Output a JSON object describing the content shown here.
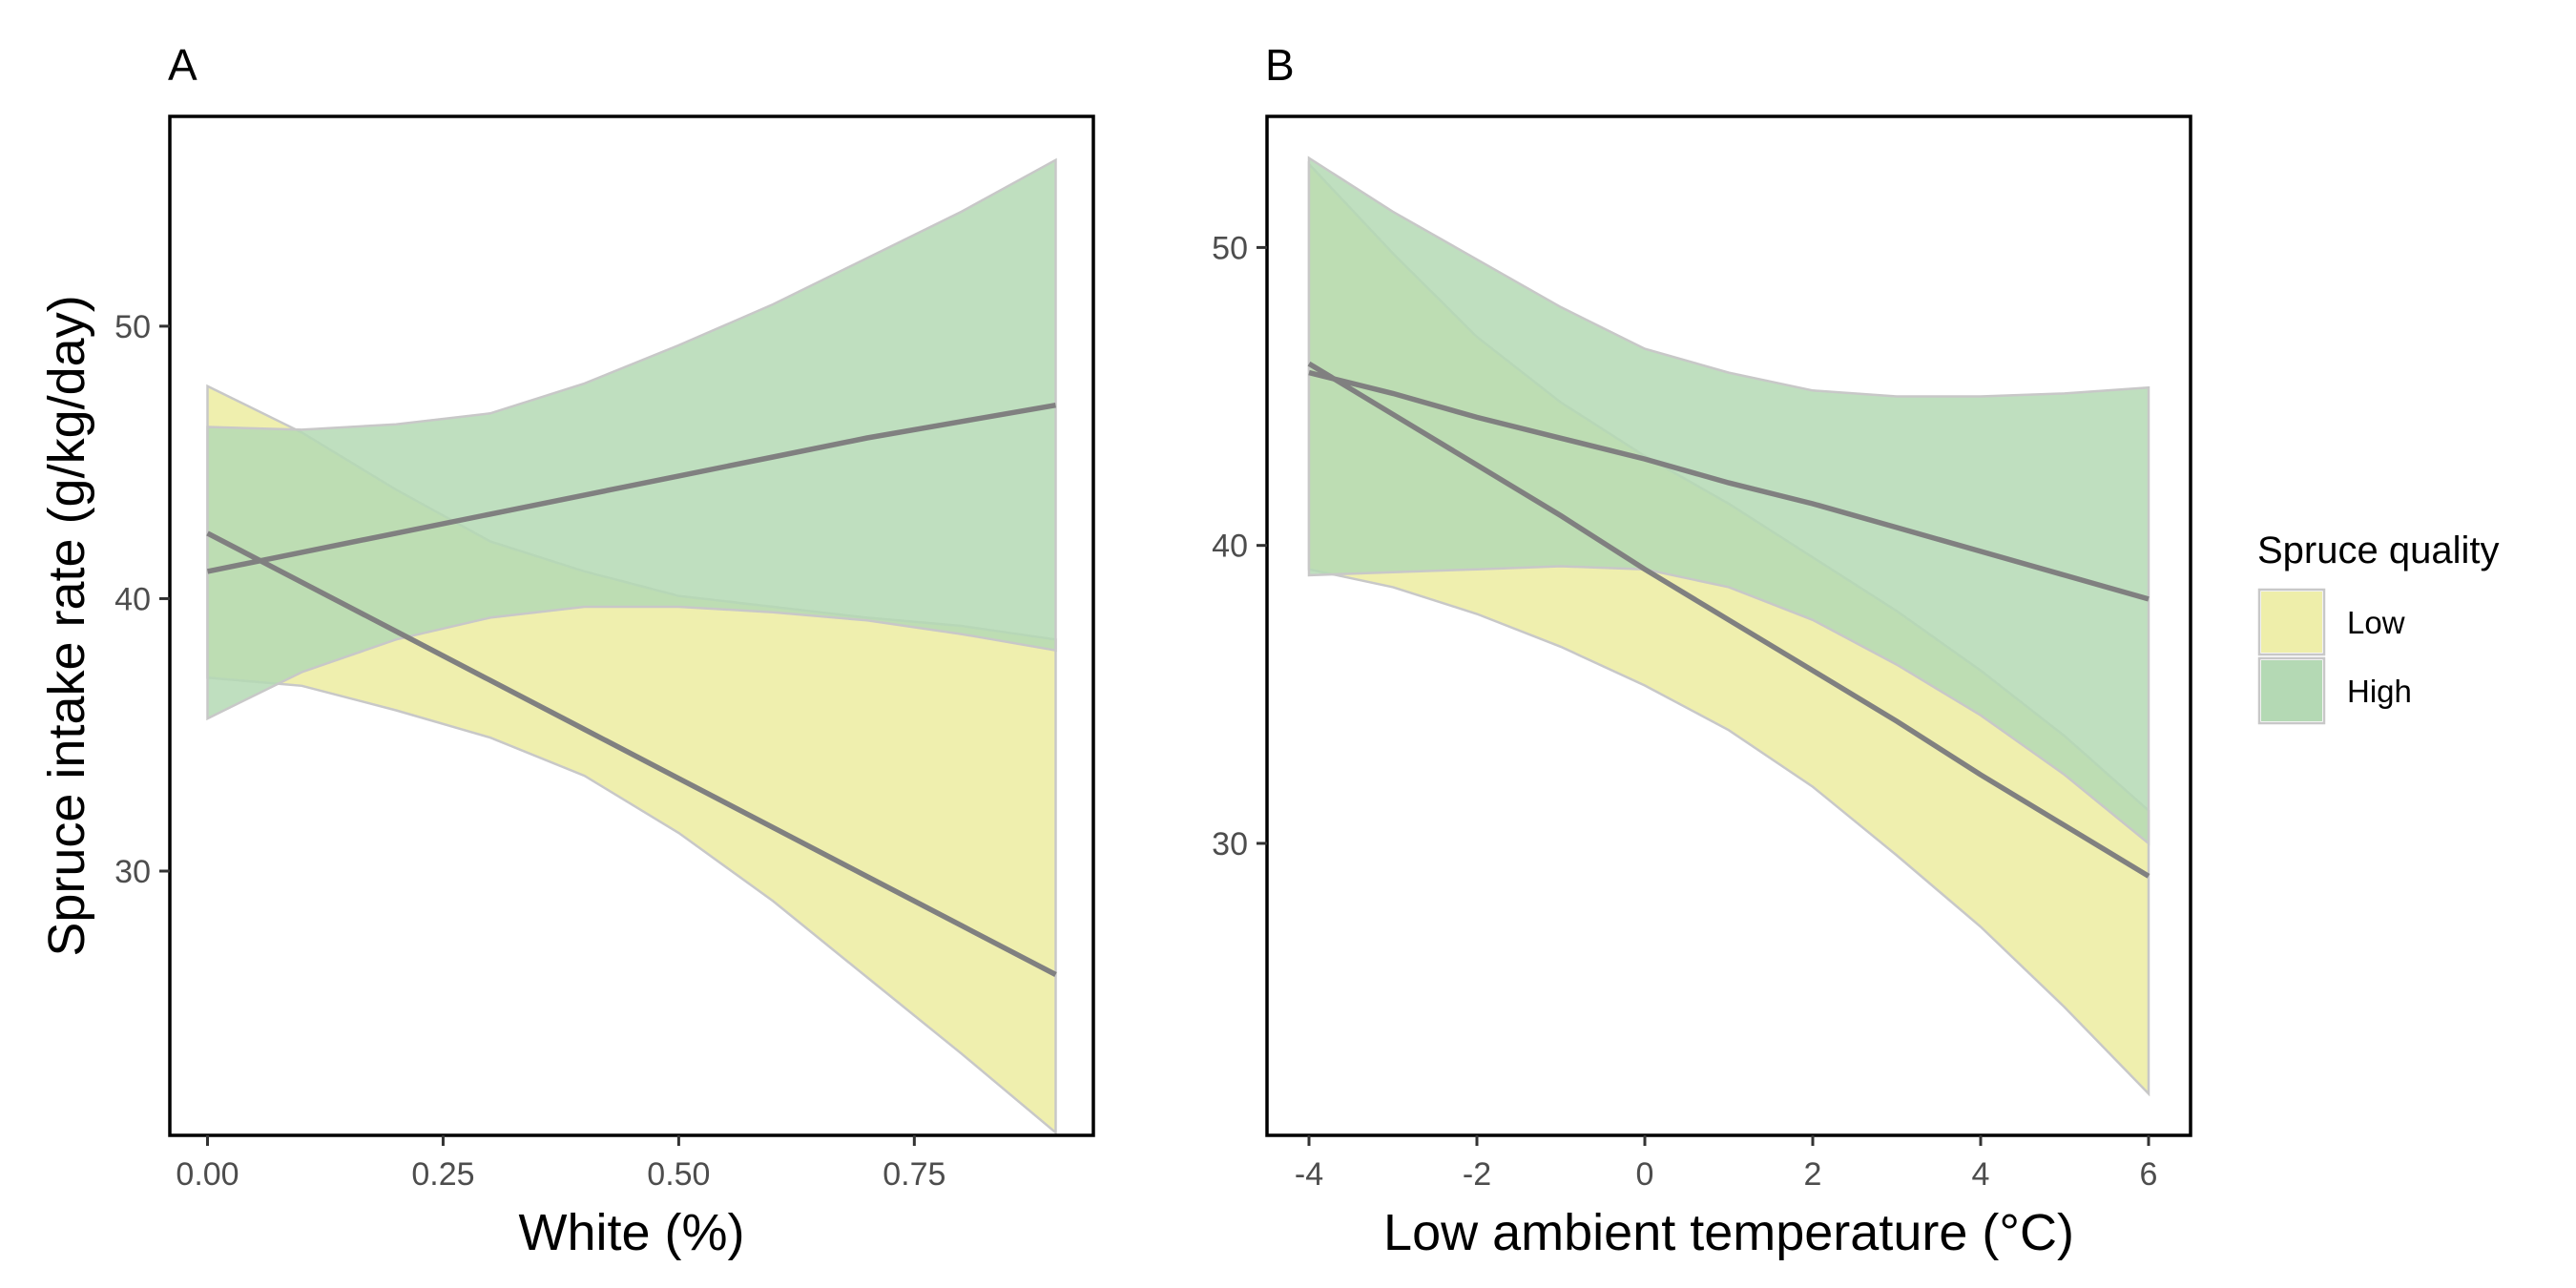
{
  "chart_data": [
    {
      "type": "line",
      "panel_label": "A",
      "xlabel": "White (%)",
      "ylabel": "Spruce intake rate (g/kg/day)",
      "xlim": [
        -0.04,
        0.94
      ],
      "ylim": [
        20.3,
        57.7
      ],
      "xticks": [
        0.0,
        0.25,
        0.5,
        0.75
      ],
      "xtick_labels": [
        "0.00",
        "0.25",
        "0.50",
        "0.75"
      ],
      "yticks": [
        30,
        40,
        50
      ],
      "ytick_labels": [
        "30",
        "40",
        "50"
      ],
      "grid": false,
      "series": [
        {
          "name": "Low",
          "fill_color": "#eeeeaa",
          "line_color": "#808080",
          "x": [
            0.0,
            0.1,
            0.2,
            0.3,
            0.4,
            0.5,
            0.6,
            0.7,
            0.8,
            0.9
          ],
          "y": [
            42.4,
            40.6,
            38.8,
            37.0,
            35.2,
            33.4,
            31.6,
            29.8,
            28.0,
            26.2
          ],
          "lower": [
            37.1,
            36.8,
            35.9,
            34.9,
            33.5,
            31.4,
            28.9,
            26.1,
            23.3,
            20.4
          ],
          "upper": [
            47.8,
            46.1,
            44.0,
            42.1,
            41.0,
            40.1,
            39.7,
            39.3,
            39.0,
            38.5
          ]
        },
        {
          "name": "High",
          "fill_color": "#b4d9b4",
          "line_color": "#808080",
          "x": [
            0.0,
            0.1,
            0.2,
            0.3,
            0.4,
            0.5,
            0.6,
            0.7,
            0.8,
            0.9
          ],
          "y": [
            41.0,
            41.7,
            42.4,
            43.1,
            43.8,
            44.5,
            45.2,
            45.9,
            46.5,
            47.1
          ],
          "lower": [
            35.6,
            37.3,
            38.5,
            39.3,
            39.7,
            39.7,
            39.5,
            39.2,
            38.7,
            38.1
          ],
          "upper": [
            46.3,
            46.2,
            46.4,
            46.8,
            47.9,
            49.3,
            50.8,
            52.5,
            54.2,
            56.1
          ]
        }
      ]
    },
    {
      "type": "line",
      "panel_label": "B",
      "xlabel": "Low ambient temperature (°C)",
      "ylabel": "",
      "xlim": [
        -4.5,
        6.5
      ],
      "ylim": [
        20.2,
        54.4
      ],
      "xticks": [
        -4,
        -2,
        0,
        2,
        4,
        6
      ],
      "xtick_labels": [
        "-4",
        "-2",
        "0",
        "2",
        "4",
        "6"
      ],
      "yticks": [
        30,
        40,
        50
      ],
      "ytick_labels": [
        "30",
        "40",
        "50"
      ],
      "grid": false,
      "series": [
        {
          "name": "Low",
          "fill_color": "#eeeeaa",
          "line_color": "#808080",
          "x": [
            -4,
            -3,
            -2,
            -1,
            0,
            1,
            2,
            3,
            4,
            5,
            6
          ],
          "y": [
            46.1,
            44.4,
            42.7,
            41.0,
            39.2,
            37.5,
            35.8,
            34.1,
            32.3,
            30.6,
            28.9
          ],
          "lower": [
            39.2,
            38.6,
            37.7,
            36.6,
            35.3,
            33.8,
            31.9,
            29.6,
            27.2,
            24.5,
            21.6
          ],
          "upper": [
            52.8,
            49.8,
            47.0,
            44.8,
            43.0,
            41.4,
            39.6,
            37.8,
            35.8,
            33.6,
            31.1
          ]
        },
        {
          "name": "High",
          "fill_color": "#b4d9b4",
          "line_color": "#808080",
          "x": [
            -4,
            -3,
            -2,
            -1,
            0,
            1,
            2,
            3,
            4,
            5,
            6
          ],
          "y": [
            45.8,
            45.1,
            44.3,
            43.6,
            42.9,
            42.1,
            41.4,
            40.6,
            39.8,
            39.0,
            38.2
          ],
          "lower": [
            39.0,
            39.1,
            39.2,
            39.3,
            39.2,
            38.6,
            37.5,
            36.0,
            34.3,
            32.3,
            30.0
          ],
          "upper": [
            53.0,
            51.2,
            49.6,
            48.0,
            46.6,
            45.8,
            45.2,
            45.0,
            45.0,
            45.1,
            45.3
          ]
        }
      ]
    }
  ],
  "legend": {
    "title": "Spruce quality",
    "placement": "right",
    "items": [
      {
        "label": "Low",
        "color": "#eeeeaa"
      },
      {
        "label": "High",
        "color": "#b4d9b4"
      }
    ]
  }
}
